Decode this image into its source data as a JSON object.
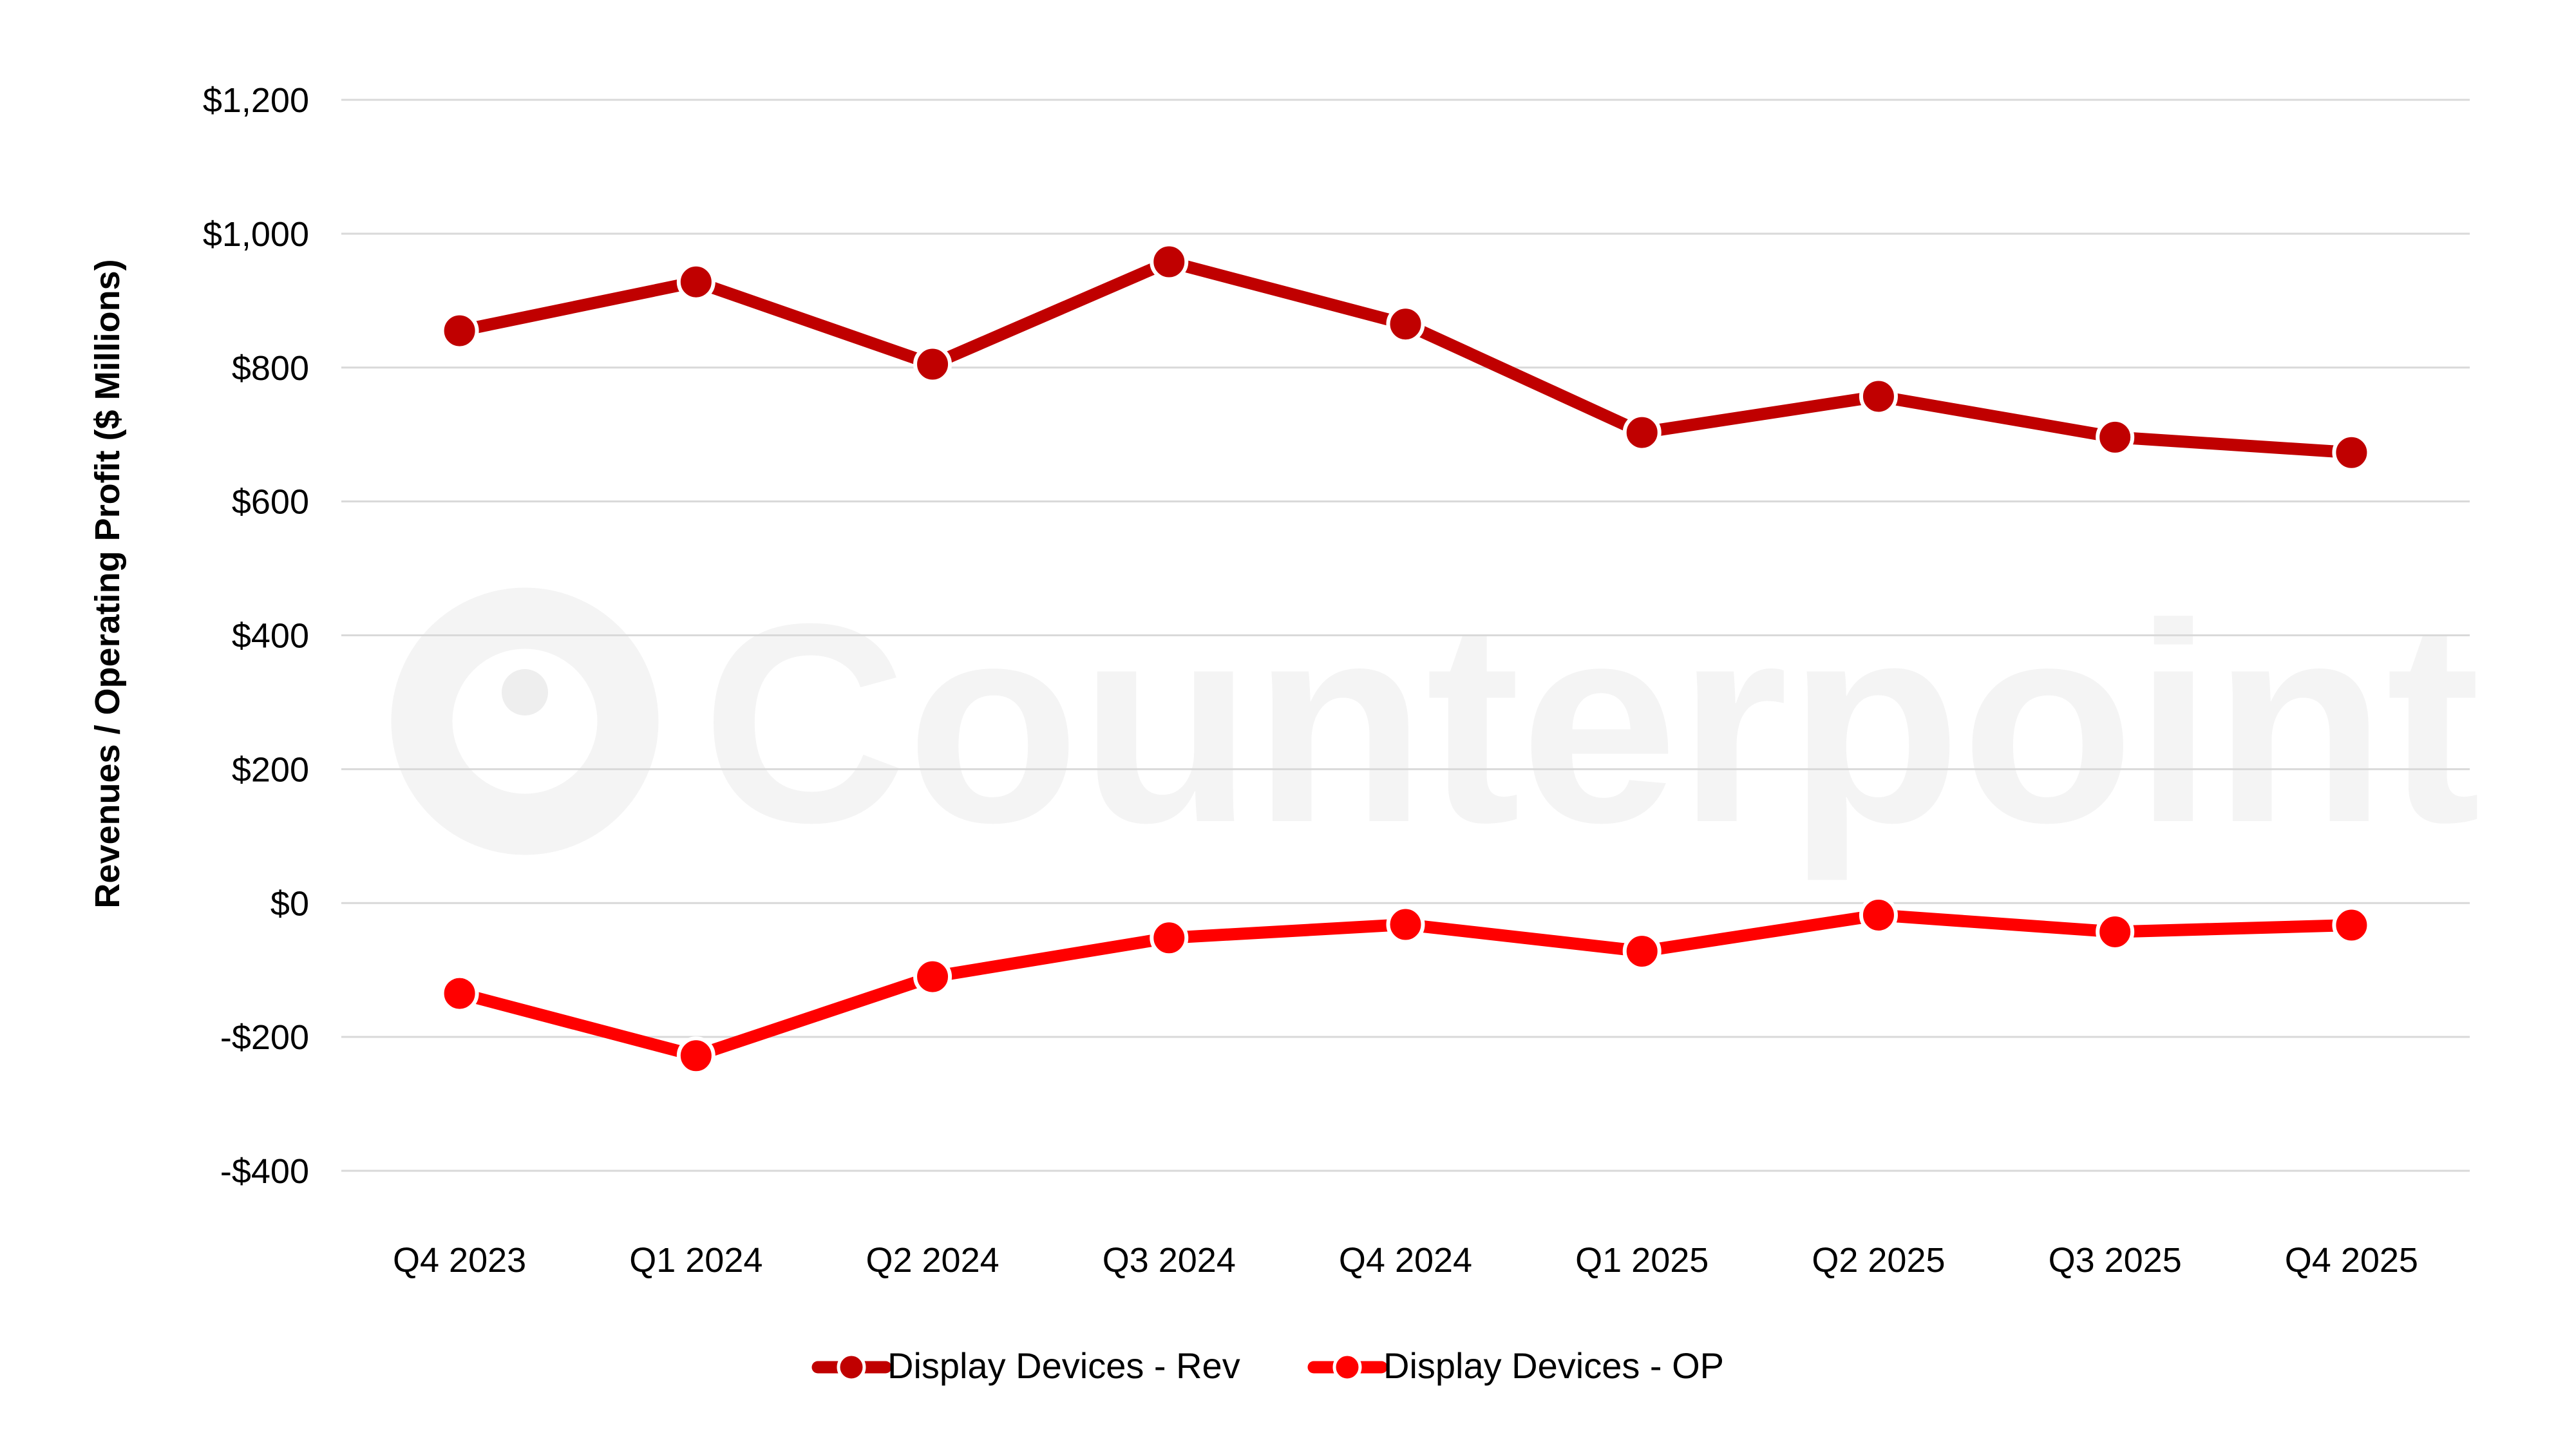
{
  "watermark": {
    "text": "Counterpoint"
  },
  "chart_data": {
    "type": "line",
    "title": "",
    "xlabel": "",
    "ylabel": "Revenues / Operating Profit ($ Millions)",
    "categories": [
      "Q4 2023",
      "Q1 2024",
      "Q2 2024",
      "Q3 2024",
      "Q4 2024",
      "Q1 2025",
      "Q2 2025",
      "Q3 2025",
      "Q4 2025"
    ],
    "ylim": [
      -400,
      1200
    ],
    "yticks": [
      -400,
      -200,
      0,
      200,
      400,
      600,
      800,
      1000,
      1200
    ],
    "ytick_labels": [
      "-$400",
      "-$200",
      "$0",
      "$200",
      "$400",
      "$600",
      "$800",
      "$1,000",
      "$1,200"
    ],
    "grid": true,
    "legend_position": "bottom",
    "series": [
      {
        "name": "Display Devices - Rev",
        "color": "#c00000",
        "values": [
          855,
          928,
          805,
          958,
          865,
          703,
          757,
          696,
          673
        ]
      },
      {
        "name": "Display Devices - OP",
        "color": "#ff0000",
        "values": [
          -135,
          -228,
          -110,
          -52,
          -32,
          -72,
          -18,
          -43,
          -33
        ]
      }
    ]
  }
}
